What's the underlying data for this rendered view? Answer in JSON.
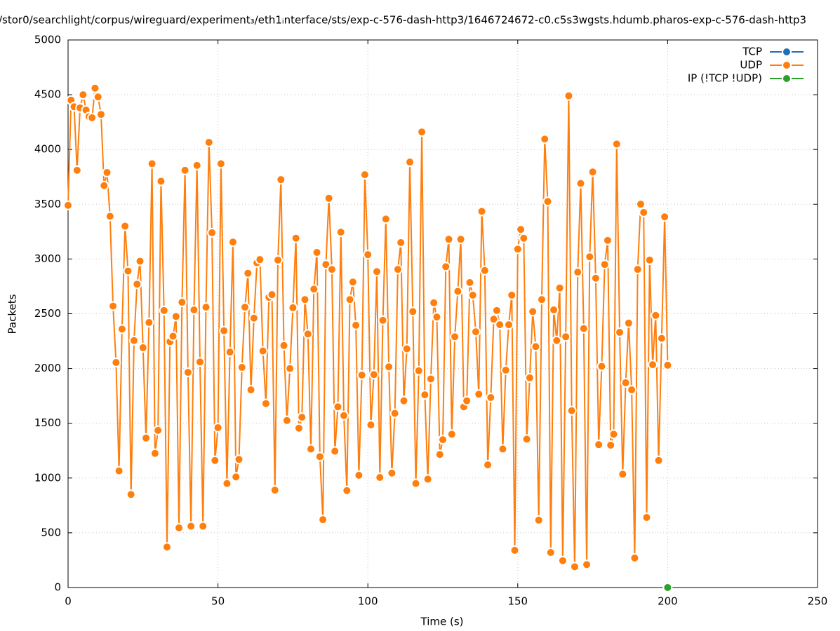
{
  "chart_data": {
    "type": "line",
    "title": "/stor0/searchlight/corpus/wireguard/experiment₃/eth1ᵢnterface/sts/exp-c-576-dash-http3/1646724672-c0.c5s3wgsts.hdumb.pharos-exp-c-576-dash-http3",
    "x_label": "Time (s)",
    "y_label": "Packets",
    "xlim": [
      0,
      250
    ],
    "xticks": [
      0,
      50,
      100,
      150,
      200,
      250
    ],
    "ylim": [
      0,
      5000
    ],
    "yticks": [
      0,
      500,
      1000,
      1500,
      2000,
      2500,
      3000,
      3500,
      4000,
      4500,
      5000
    ],
    "grid": true,
    "legend": "upper right",
    "series": [
      {
        "name": "TCP",
        "color": "#1f6fb4",
        "x": [],
        "values": []
      },
      {
        "name": "UDP",
        "color": "#ff7f0e",
        "x": [
          0,
          1,
          2,
          3,
          4,
          5,
          6,
          7,
          8,
          9,
          10,
          11,
          12,
          13,
          14,
          15,
          16,
          17,
          18,
          19,
          20,
          21,
          22,
          23,
          24,
          25,
          26,
          27,
          28,
          29,
          30,
          31,
          32,
          33,
          34,
          35,
          36,
          37,
          38,
          39,
          40,
          41,
          42,
          43,
          44,
          45,
          46,
          47,
          48,
          49,
          50,
          51,
          52,
          53,
          54,
          55,
          56,
          57,
          58,
          59,
          60,
          61,
          62,
          63,
          64,
          65,
          66,
          67,
          68,
          69,
          70,
          71,
          72,
          73,
          74,
          75,
          76,
          77,
          78,
          79,
          80,
          81,
          82,
          83,
          84,
          85,
          86,
          87,
          88,
          89,
          90,
          91,
          92,
          93,
          94,
          95,
          96,
          97,
          98,
          99,
          100,
          101,
          102,
          103,
          104,
          105,
          106,
          107,
          108,
          109,
          110,
          111,
          112,
          113,
          114,
          115,
          116,
          117,
          118,
          119,
          120,
          121,
          122,
          123,
          124,
          125,
          126,
          127,
          128,
          129,
          130,
          131,
          132,
          133,
          134,
          135,
          136,
          137,
          138,
          139,
          140,
          141,
          142,
          143,
          144,
          145,
          146,
          147,
          148,
          149,
          150,
          151,
          152,
          153,
          154,
          155,
          156,
          157,
          158,
          159,
          160,
          161,
          162,
          163,
          164,
          165,
          166,
          167,
          168,
          169,
          170,
          171,
          172,
          173,
          174,
          175,
          176,
          177,
          178,
          179,
          180,
          181,
          182,
          183,
          184,
          185,
          186,
          187,
          188,
          189,
          190,
          191,
          192,
          193,
          194,
          195,
          196,
          197,
          198,
          199,
          200
        ],
        "values": [
          3490,
          4450,
          4390,
          3810,
          4380,
          4500,
          4360,
          4300,
          4290,
          4560,
          4480,
          4320,
          3670,
          3790,
          3390,
          2570,
          2055,
          1065,
          2360,
          3300,
          2890,
          850,
          2255,
          2770,
          2980,
          2190,
          1365,
          2420,
          3870,
          1225,
          1435,
          3710,
          2530,
          370,
          2245,
          2295,
          2475,
          545,
          2605,
          3810,
          1965,
          560,
          2535,
          3855,
          2060,
          560,
          2560,
          4065,
          3240,
          1160,
          1460,
          3870,
          2345,
          950,
          2150,
          3155,
          1010,
          1170,
          2010,
          2560,
          2870,
          1805,
          2460,
          2965,
          2995,
          2160,
          1680,
          2650,
          2675,
          890,
          2990,
          3725,
          2210,
          1525,
          2000,
          2555,
          3190,
          1455,
          1555,
          2630,
          2315,
          1265,
          2725,
          3060,
          1195,
          620,
          2950,
          3555,
          2905,
          1245,
          1650,
          3245,
          1570,
          885,
          2630,
          2790,
          2395,
          1025,
          1940,
          3770,
          3040,
          1485,
          1945,
          2885,
          1005,
          2440,
          3365,
          2015,
          1045,
          1590,
          2905,
          3150,
          1705,
          2180,
          3885,
          2520,
          950,
          1980,
          4160,
          1760,
          990,
          1905,
          2600,
          2470,
          1215,
          1350,
          2930,
          3180,
          1400,
          2290,
          2705,
          3180,
          1650,
          1705,
          2785,
          2670,
          2335,
          1765,
          3435,
          2895,
          1120,
          1735,
          2450,
          2530,
          2400,
          1265,
          1985,
          2400,
          2670,
          340,
          3090,
          3270,
          3190,
          1355,
          1915,
          2520,
          2200,
          615,
          2630,
          4095,
          3525,
          320,
          2535,
          2255,
          2735,
          245,
          2290,
          4490,
          1615,
          190,
          2880,
          3690,
          2365,
          210,
          3020,
          3795,
          2825,
          1305,
          2020,
          2950,
          3170,
          1300,
          1400,
          4050,
          2330,
          1035,
          1870,
          2415,
          1805,
          270,
          2905,
          3500,
          3425,
          640,
          2990,
          2035,
          2485,
          1160,
          2275,
          3385,
          2030
        ]
      },
      {
        "name": "IP (!TCP  !UDP)",
        "color": "#2ca02c",
        "x": [
          200
        ],
        "values": [
          0
        ]
      }
    ]
  }
}
